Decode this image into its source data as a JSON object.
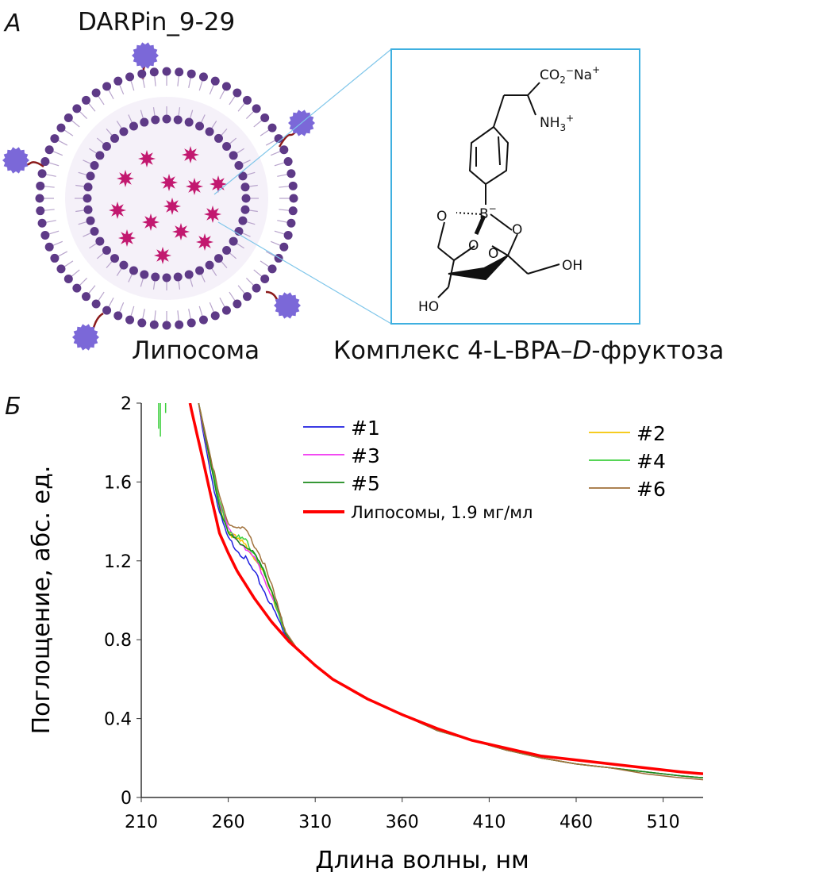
{
  "panel_a": {
    "letter": "А",
    "title": "DARPin_9-29",
    "liposome_label": "Липосома",
    "complex_label_pre": "Комплекс 4-L-BPA–",
    "complex_label_italic": "D",
    "complex_label_post": "-фруктоза",
    "structure": {
      "co2": "CO",
      "co2_sub": "2",
      "co2_charge": "−",
      "na": "Na",
      "na_charge": "+",
      "nh3": "NH",
      "nh3_sub": "3",
      "nh3_charge": "+",
      "boron": "B",
      "boron_charge": "−",
      "o": "O",
      "oh": "OH",
      "ho": "HO"
    },
    "colors": {
      "lipid_head": "#5e3a87",
      "payload": "#c2186f",
      "darpin": "#7b68d8",
      "linker": "#8b1a1a",
      "box": "#3fb0e0"
    }
  },
  "chart_data": {
    "panel_letter": "Б",
    "type": "line",
    "xlabel": "Длина волны, нм",
    "ylabel": "Поглощение, абс. ед.",
    "xlim": [
      210,
      533
    ],
    "ylim": [
      0,
      2
    ],
    "xticks": [
      210,
      260,
      310,
      360,
      410,
      460,
      510
    ],
    "yticks": [
      "0",
      "0.4",
      "0.8",
      "1.2",
      "1.6",
      "2"
    ],
    "grid": false,
    "legend_placement": "top-right",
    "series": [
      {
        "name": "#1",
        "color": "#1f1fe0",
        "x": [
          243,
          245,
          250,
          255,
          260,
          265,
          270,
          275,
          280,
          285,
          290,
          293,
          300,
          310,
          320,
          340,
          360,
          380,
          400,
          420,
          440,
          460,
          480,
          500,
          520,
          533
        ],
        "y": [
          2.0,
          1.88,
          1.64,
          1.44,
          1.31,
          1.26,
          1.21,
          1.14,
          1.06,
          0.97,
          0.88,
          0.82,
          0.75,
          0.67,
          0.6,
          0.5,
          0.42,
          0.34,
          0.29,
          0.24,
          0.2,
          0.17,
          0.15,
          0.13,
          0.11,
          0.1
        ]
      },
      {
        "name": "#2",
        "color": "#f5c400",
        "x": [
          243,
          245,
          250,
          255,
          260,
          265,
          270,
          275,
          280,
          285,
          290,
          293,
          300,
          310,
          320,
          340,
          360,
          380,
          400,
          420,
          440,
          460,
          480,
          500,
          520,
          533
        ],
        "y": [
          2.0,
          1.9,
          1.68,
          1.48,
          1.35,
          1.31,
          1.28,
          1.22,
          1.14,
          1.03,
          0.91,
          0.83,
          0.75,
          0.67,
          0.6,
          0.5,
          0.42,
          0.34,
          0.29,
          0.24,
          0.2,
          0.17,
          0.15,
          0.13,
          0.11,
          0.1
        ]
      },
      {
        "name": "#3",
        "color": "#f030f0",
        "x": [
          243,
          245,
          250,
          255,
          260,
          265,
          270,
          275,
          280,
          285,
          290,
          293,
          300,
          310,
          320,
          340,
          360,
          380,
          400,
          420,
          440,
          460,
          480,
          500,
          520,
          533
        ],
        "y": [
          2.0,
          1.9,
          1.69,
          1.49,
          1.36,
          1.31,
          1.27,
          1.21,
          1.13,
          1.02,
          0.9,
          0.83,
          0.75,
          0.67,
          0.6,
          0.5,
          0.42,
          0.34,
          0.29,
          0.24,
          0.2,
          0.17,
          0.15,
          0.13,
          0.11,
          0.1
        ]
      },
      {
        "name": "#4",
        "color": "#3ecf3e",
        "x": [
          243,
          245,
          250,
          255,
          260,
          265,
          270,
          275,
          280,
          285,
          290,
          293,
          300,
          310,
          320,
          340,
          360,
          380,
          400,
          420,
          440,
          460,
          480,
          500,
          520,
          533
        ],
        "y": [
          2.0,
          1.92,
          1.7,
          1.5,
          1.36,
          1.32,
          1.3,
          1.24,
          1.16,
          1.04,
          0.91,
          0.83,
          0.75,
          0.67,
          0.6,
          0.5,
          0.42,
          0.34,
          0.29,
          0.24,
          0.2,
          0.17,
          0.15,
          0.13,
          0.11,
          0.1
        ],
        "spikes": [
          [
            220,
            1.87
          ],
          [
            221,
            1.83
          ],
          [
            224,
            1.95
          ]
        ]
      },
      {
        "name": "#5",
        "color": "#1a8a1a",
        "x": [
          243,
          245,
          250,
          255,
          260,
          265,
          270,
          275,
          280,
          285,
          290,
          293,
          300,
          310,
          320,
          340,
          360,
          380,
          400,
          420,
          440,
          460,
          480,
          500,
          520,
          533
        ],
        "y": [
          2.0,
          1.91,
          1.69,
          1.48,
          1.33,
          1.3,
          1.28,
          1.23,
          1.16,
          1.05,
          0.92,
          0.83,
          0.75,
          0.67,
          0.6,
          0.5,
          0.42,
          0.34,
          0.29,
          0.24,
          0.2,
          0.17,
          0.15,
          0.13,
          0.11,
          0.1
        ]
      },
      {
        "name": "#6",
        "color": "#a0703a",
        "x": [
          243,
          245,
          250,
          255,
          260,
          265,
          270,
          275,
          280,
          285,
          290,
          293,
          300,
          310,
          320,
          340,
          360,
          380,
          400,
          420,
          440,
          460,
          480,
          500,
          520,
          533
        ],
        "y": [
          2.0,
          1.92,
          1.72,
          1.52,
          1.39,
          1.37,
          1.35,
          1.28,
          1.2,
          1.07,
          0.93,
          0.84,
          0.75,
          0.67,
          0.6,
          0.5,
          0.42,
          0.34,
          0.29,
          0.24,
          0.2,
          0.17,
          0.15,
          0.12,
          0.1,
          0.09
        ]
      },
      {
        "name": "Липосомы, 1.9 мг/мл",
        "color": "#ff0000",
        "x": [
          238,
          240,
          245,
          250,
          255,
          260,
          265,
          270,
          275,
          280,
          285,
          290,
          295,
          300,
          310,
          320,
          340,
          360,
          380,
          400,
          420,
          440,
          460,
          480,
          500,
          520,
          533
        ],
        "y": [
          2.0,
          1.92,
          1.73,
          1.53,
          1.34,
          1.24,
          1.15,
          1.08,
          1.01,
          0.95,
          0.89,
          0.84,
          0.79,
          0.75,
          0.67,
          0.6,
          0.5,
          0.42,
          0.35,
          0.29,
          0.25,
          0.21,
          0.19,
          0.17,
          0.15,
          0.13,
          0.12
        ]
      }
    ]
  }
}
